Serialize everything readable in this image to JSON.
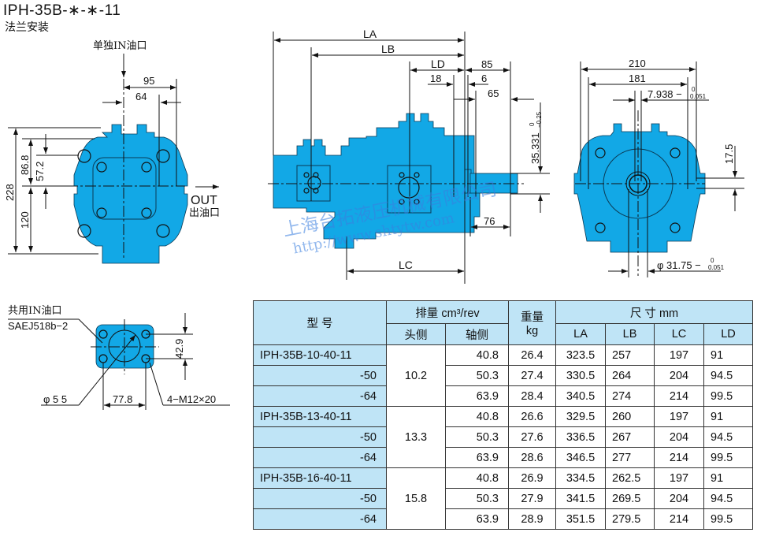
{
  "header": {
    "title": "IPH-35B-∗-∗-11",
    "subtitle": "法兰安装"
  },
  "colors": {
    "pump_body": "#12a8e6",
    "table_header": "#bfe4f6",
    "watermark": "#3a7fe0"
  },
  "front_view": {
    "in_label": "单独IN油口",
    "out_label": "OUT",
    "out_label_cn": "出油口",
    "dims": {
      "w95": "95",
      "w64": "64",
      "h228": "228",
      "h86": "86.8",
      "h57": "57.2",
      "h120": "120"
    }
  },
  "side_view": {
    "dims": {
      "la": "LA",
      "lb": "LB",
      "ld": "LD",
      "d85": "85",
      "d18": "18",
      "d6": "6",
      "d65": "65",
      "d76": "76",
      "lc": "LC",
      "key": "35.331",
      "key_tol_up": "0",
      "key_tol_lo": "−0.25"
    }
  },
  "end_view": {
    "dims": {
      "w210": "210",
      "w181": "181",
      "key": "7.938 −",
      "key_tol_up": "0",
      "key_tol_lo": "0.051",
      "h17": "17.5",
      "shaft": "φ 31.75 −",
      "shaft_tol_up": "0",
      "shaft_tol_lo": "0.051"
    }
  },
  "port_view": {
    "label": "共用IN油口",
    "spec": "SAEJ518b−2",
    "d42": "42.9",
    "d77": "77.8",
    "bore": "φ 5 5",
    "bolts": "4−M12×20"
  },
  "watermark": {
    "company": "上海台拓液压机械有限公司",
    "url": "http://www.shtytw.com"
  },
  "table": {
    "headers": {
      "model": "型 号",
      "displacement": "排量 cm³/rev",
      "head_side": "头侧",
      "shaft_side": "轴侧",
      "weight": "重量",
      "weight_unit": "kg",
      "dims": "尺 寸  mm",
      "la": "LA",
      "lb": "LB",
      "lc": "LC",
      "ld": "LD"
    },
    "groups": [
      {
        "head": "10.2",
        "rows": [
          {
            "model": "IPH-35B-10-40-11",
            "shaft": "40.8",
            "kg": "26.4",
            "la": "323.5",
            "lb": "257",
            "lc": "197",
            "ld": "91"
          },
          {
            "model": "-50",
            "shaft": "50.3",
            "kg": "27.4",
            "la": "330.5",
            "lb": "264",
            "lc": "204",
            "ld": "94.5"
          },
          {
            "model": "-64",
            "shaft": "63.9",
            "kg": "28.4",
            "la": "340.5",
            "lb": "274",
            "lc": "214",
            "ld": "99.5"
          }
        ]
      },
      {
        "head": "13.3",
        "rows": [
          {
            "model": "IPH-35B-13-40-11",
            "shaft": "40.8",
            "kg": "26.6",
            "la": "329.5",
            "lb": "260",
            "lc": "197",
            "ld": "91"
          },
          {
            "model": "-50",
            "shaft": "50.3",
            "kg": "27.6",
            "la": "336.5",
            "lb": "267",
            "lc": "204",
            "ld": "94.5"
          },
          {
            "model": "-64",
            "shaft": "63.9",
            "kg": "28.6",
            "la": "346.5",
            "lb": "277",
            "lc": "214",
            "ld": "99.5"
          }
        ]
      },
      {
        "head": "15.8",
        "rows": [
          {
            "model": "IPH-35B-16-40-11",
            "shaft": "40.8",
            "kg": "26.9",
            "la": "334.5",
            "lb": "262.5",
            "lc": "197",
            "ld": "91"
          },
          {
            "model": "-50",
            "shaft": "50.3",
            "kg": "27.9",
            "la": "341.5",
            "lb": "269.5",
            "lc": "204",
            "ld": "94.5"
          },
          {
            "model": "-64",
            "shaft": "63.9",
            "kg": "28.9",
            "la": "351.5",
            "lb": "279.5",
            "lc": "214",
            "ld": "99.5"
          }
        ]
      }
    ]
  }
}
